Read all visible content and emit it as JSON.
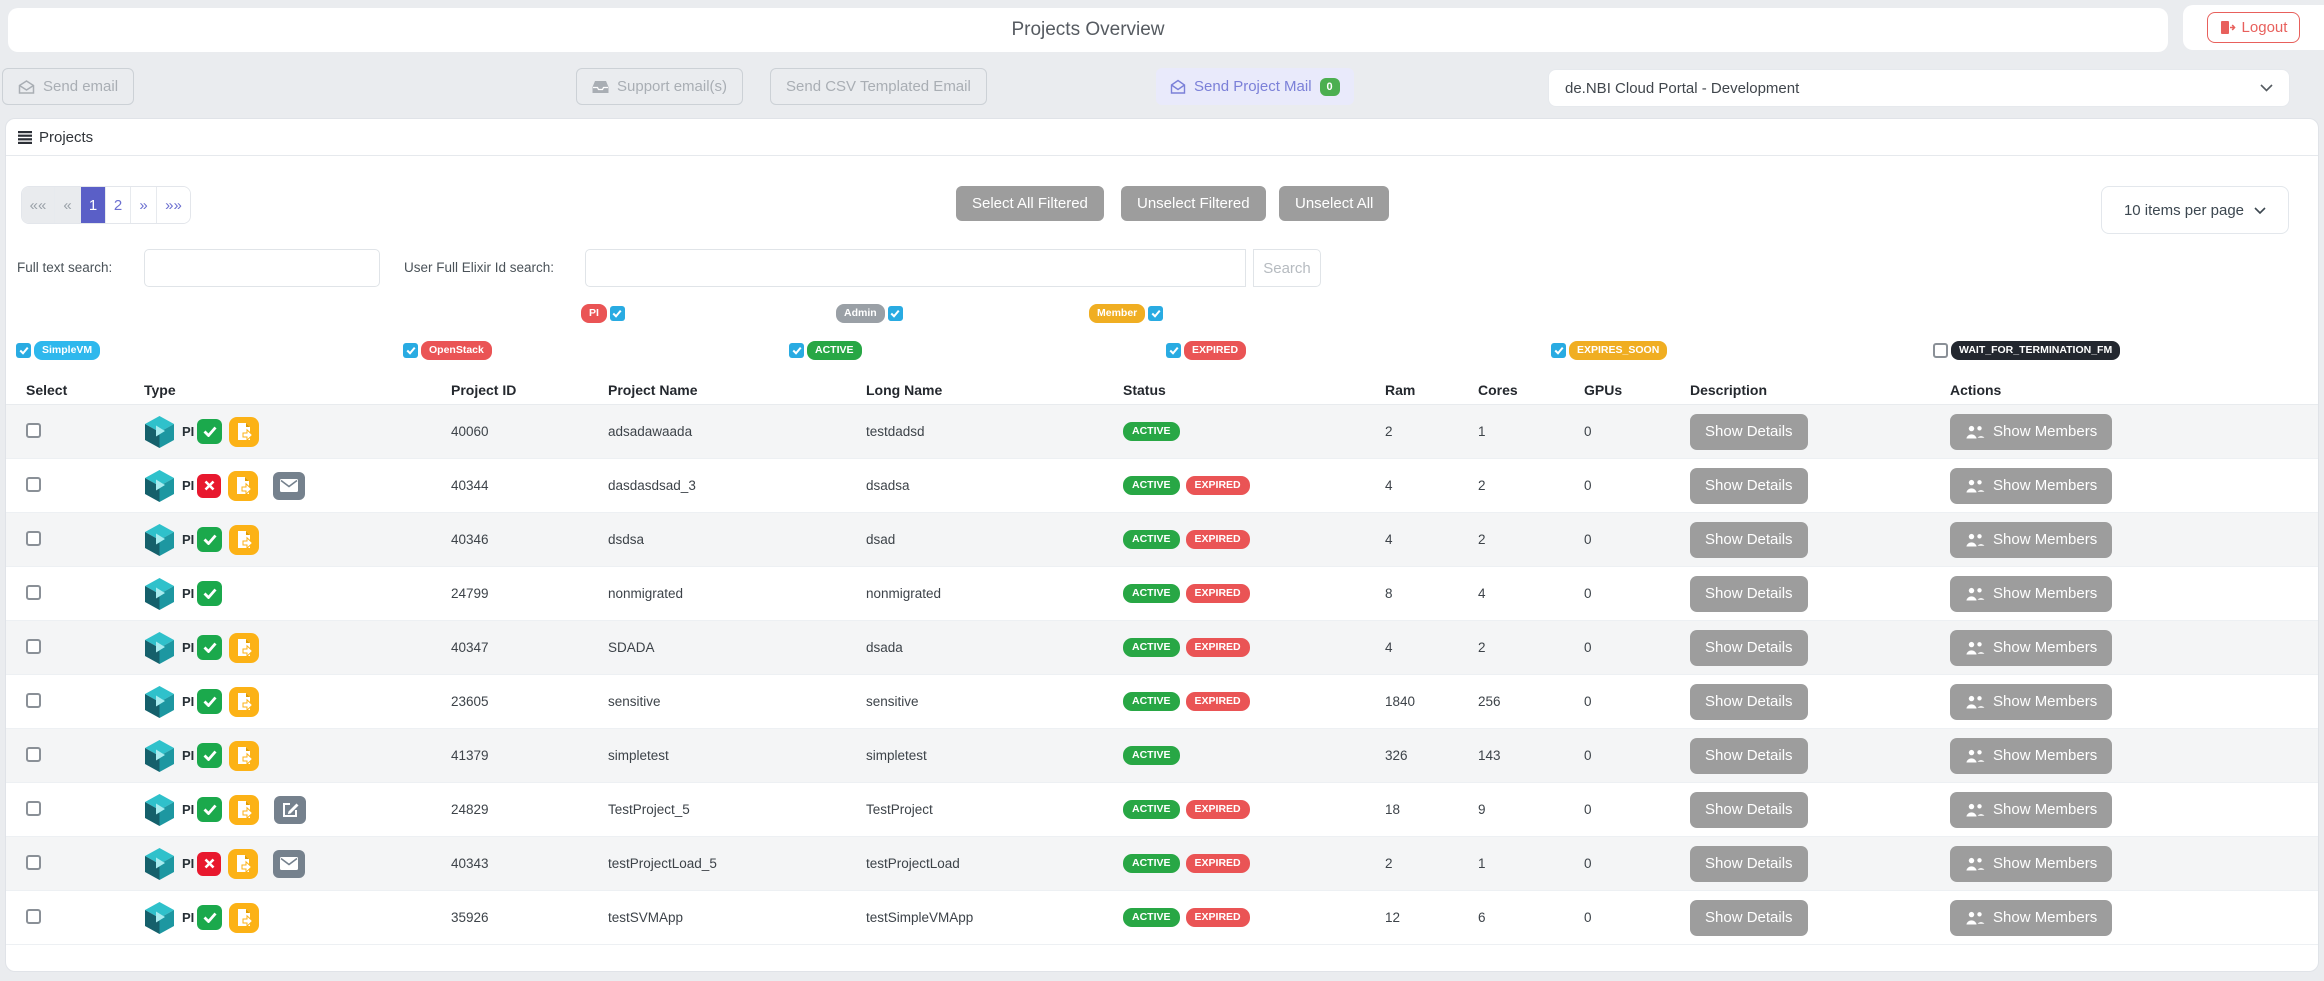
{
  "header": {
    "title": "Projects Overview",
    "logout": "Logout"
  },
  "toolbar": {
    "send_email": "Send email",
    "support_email": "Support email(s)",
    "send_csv": "Send CSV Templated Email",
    "send_project_mail": "Send Project Mail",
    "mail_count": "0",
    "facility": "de.NBI Cloud Portal - Development"
  },
  "panel": {
    "title": "Projects"
  },
  "pagination": {
    "first": "««",
    "prev": "«",
    "page1": "1",
    "page2": "2",
    "next": "»",
    "last": "»»"
  },
  "bulk": {
    "select_all": "Select All Filtered",
    "unselect_filtered": "Unselect Filtered",
    "unselect_all": "Unselect All"
  },
  "page_size": {
    "label": "10 items per page"
  },
  "search": {
    "full_text_label": "Full text search:",
    "elixir_label": "User Full Elixir Id search:",
    "search_button": "Search"
  },
  "filters": {
    "roles": [
      {
        "label": "PI",
        "color": "#ea5455",
        "checked": true
      },
      {
        "label": "Admin",
        "color": "#9aa0a6",
        "checked": true
      },
      {
        "label": "Member",
        "color": "#f0ae22",
        "checked": true
      }
    ],
    "states": [
      {
        "label": "SimpleVM",
        "color": "#2eb8ed",
        "checked": true
      },
      {
        "label": "OpenStack",
        "color": "#ea5455",
        "checked": true
      },
      {
        "label": "ACTIVE",
        "color": "#28a745",
        "checked": true
      },
      {
        "label": "EXPIRED",
        "color": "#ea5455",
        "checked": true
      },
      {
        "label": "EXPIRES_SOON",
        "color": "#f0ae22",
        "checked": true
      },
      {
        "label": "WAIT_FOR_TERMINATION_FM",
        "color": "#23272f",
        "checked": false
      }
    ]
  },
  "table": {
    "columns": [
      "Select",
      "Type",
      "Project ID",
      "Project Name",
      "Long Name",
      "Status",
      "Ram",
      "Cores",
      "GPUs",
      "Description",
      "Actions"
    ],
    "details_button": "Show Details",
    "members_button": "Show Members",
    "status_colors": {
      "ACTIVE": "#28a745",
      "EXPIRED": "#ea5455"
    },
    "rows": [
      {
        "project_id": "40060",
        "project_name": "adsadawaada",
        "long_name": "testdadsd",
        "status": [
          "ACTIVE"
        ],
        "ram": "2",
        "cores": "1",
        "gpus": "0",
        "type_icons": [
          "simplevm",
          "pi",
          "approved",
          "application"
        ]
      },
      {
        "project_id": "40344",
        "project_name": "dasdasdsad_3",
        "long_name": "dsadsa",
        "status": [
          "ACTIVE",
          "EXPIRED"
        ],
        "ram": "4",
        "cores": "2",
        "gpus": "0",
        "type_icons": [
          "simplevm",
          "pi",
          "declined",
          "application",
          "email"
        ]
      },
      {
        "project_id": "40346",
        "project_name": "dsdsa",
        "long_name": "dsad",
        "status": [
          "ACTIVE",
          "EXPIRED"
        ],
        "ram": "4",
        "cores": "2",
        "gpus": "0",
        "type_icons": [
          "simplevm",
          "pi",
          "approved",
          "application"
        ]
      },
      {
        "project_id": "24799",
        "project_name": "nonmigrated",
        "long_name": "nonmigrated",
        "status": [
          "ACTIVE",
          "EXPIRED"
        ],
        "ram": "8",
        "cores": "4",
        "gpus": "0",
        "type_icons": [
          "simplevm",
          "pi",
          "approved"
        ]
      },
      {
        "project_id": "40347",
        "project_name": "SDADA",
        "long_name": "dsada",
        "status": [
          "ACTIVE",
          "EXPIRED"
        ],
        "ram": "4",
        "cores": "2",
        "gpus": "0",
        "type_icons": [
          "simplevm",
          "pi",
          "approved",
          "application"
        ]
      },
      {
        "project_id": "23605",
        "project_name": "sensitive",
        "long_name": "sensitive",
        "status": [
          "ACTIVE",
          "EXPIRED"
        ],
        "ram": "1840",
        "cores": "256",
        "gpus": "0",
        "type_icons": [
          "simplevm",
          "pi",
          "approved",
          "application"
        ]
      },
      {
        "project_id": "41379",
        "project_name": "simpletest",
        "long_name": "simpletest",
        "status": [
          "ACTIVE"
        ],
        "ram": "326",
        "cores": "143",
        "gpus": "0",
        "type_icons": [
          "simplevm",
          "pi",
          "approved",
          "application"
        ]
      },
      {
        "project_id": "24829",
        "project_name": "TestProject_5",
        "long_name": "TestProject",
        "status": [
          "ACTIVE",
          "EXPIRED"
        ],
        "ram": "18",
        "cores": "9",
        "gpus": "0",
        "type_icons": [
          "simplevm",
          "pi",
          "approved",
          "application",
          "edit"
        ]
      },
      {
        "project_id": "40343",
        "project_name": "testProjectLoad_5",
        "long_name": "testProjectLoad",
        "status": [
          "ACTIVE",
          "EXPIRED"
        ],
        "ram": "2",
        "cores": "1",
        "gpus": "0",
        "type_icons": [
          "simplevm",
          "pi",
          "declined",
          "application",
          "email"
        ]
      },
      {
        "project_id": "35926",
        "project_name": "testSVMApp",
        "long_name": "testSimpleVMApp",
        "status": [
          "ACTIVE",
          "EXPIRED"
        ],
        "ram": "12",
        "cores": "6",
        "gpus": "0",
        "type_icons": [
          "simplevm",
          "pi",
          "approved",
          "application"
        ]
      }
    ]
  }
}
